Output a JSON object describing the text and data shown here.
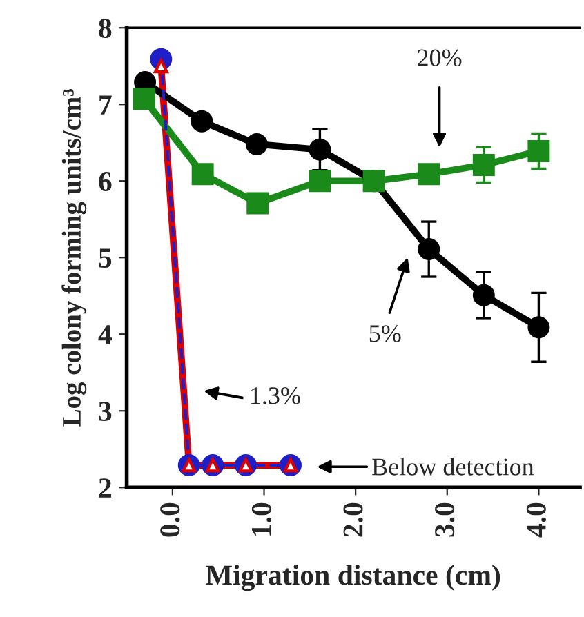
{
  "chart_data": {
    "type": "line",
    "xlabel": "Migration distance (cm)",
    "ylabel": "Log colony forming units/cm³",
    "xlim": [
      -0.5,
      4.45
    ],
    "xticks": [
      {
        "value": 0,
        "label": "0.0"
      },
      {
        "value": 1,
        "label": "1.0"
      },
      {
        "value": 2,
        "label": "2.0"
      },
      {
        "value": 3,
        "label": "3.0"
      },
      {
        "value": 4,
        "label": "4.0"
      }
    ],
    "ylim": [
      2,
      8
    ],
    "yticks": [
      2,
      3,
      4,
      5,
      6,
      7,
      8
    ],
    "series": [
      {
        "color": "#1f1fc8",
        "marker": "circle",
        "line_style": "dashed",
        "x": [
          -0.125,
          0.18,
          0.44,
          0.8,
          1.29
        ],
        "values": [
          7.59,
          2.29,
          2.29,
          2.29,
          2.29
        ]
      },
      {
        "color": "#dd0000",
        "marker": "triangle",
        "line_style": "solid",
        "x": [
          -0.125,
          0.18,
          0.44,
          0.8,
          1.29
        ],
        "values": [
          7.5,
          2.29,
          2.29,
          2.29,
          2.29
        ]
      },
      {
        "color": "#1a8a1a",
        "marker": "square",
        "line_style": "solid",
        "x": [
          -0.31,
          0.33,
          0.93,
          1.61,
          2.2,
          2.8,
          3.4,
          4.0
        ],
        "values": [
          7.07,
          6.09,
          5.71,
          6.0,
          6.0,
          6.09,
          6.21,
          6.39
        ],
        "errors": [
          null,
          null,
          null,
          null,
          null,
          null,
          0.23,
          0.23
        ]
      },
      {
        "color": "#000000",
        "marker": "circle",
        "line_style": "solid",
        "x": [
          -0.3,
          0.32,
          0.92,
          1.61,
          2.2,
          2.8,
          3.4,
          4.0
        ],
        "values": [
          7.29,
          6.78,
          6.48,
          6.41,
          6.0,
          5.11,
          4.51,
          4.09
        ],
        "errors": [
          null,
          null,
          null,
          0.27,
          null,
          0.36,
          0.3,
          0.45
        ]
      }
    ],
    "annotations": [
      "20%",
      "5%",
      "1.3%",
      "Below detection"
    ]
  }
}
